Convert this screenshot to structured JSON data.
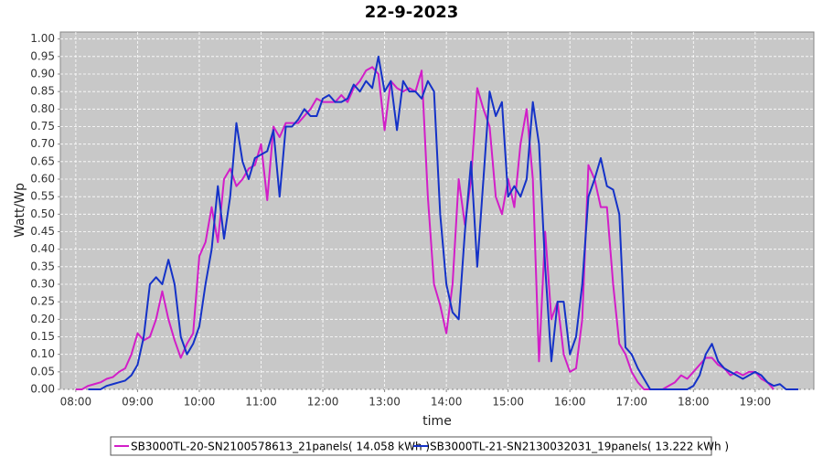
{
  "chart_data": {
    "type": "line",
    "title": "22-9-2023",
    "x_label": "time",
    "y_label": "Watt/Wp",
    "x": [
      8.0,
      8.1,
      8.2,
      8.3,
      8.4,
      8.5,
      8.6,
      8.7,
      8.8,
      8.9,
      9.0,
      9.1,
      9.2,
      9.3,
      9.4,
      9.5,
      9.6,
      9.7,
      9.8,
      9.9,
      10.0,
      10.1,
      10.2,
      10.3,
      10.4,
      10.5,
      10.6,
      10.7,
      10.8,
      10.9,
      11.0,
      11.1,
      11.2,
      11.3,
      11.4,
      11.5,
      11.6,
      11.7,
      11.8,
      11.9,
      12.0,
      12.1,
      12.2,
      12.3,
      12.4,
      12.5,
      12.6,
      12.7,
      12.8,
      12.9,
      13.0,
      13.1,
      13.2,
      13.3,
      13.4,
      13.5,
      13.6,
      13.7,
      13.8,
      13.9,
      14.0,
      14.1,
      14.2,
      14.3,
      14.4,
      14.5,
      14.6,
      14.7,
      14.8,
      14.9,
      15.0,
      15.1,
      15.2,
      15.3,
      15.4,
      15.5,
      15.6,
      15.7,
      15.8,
      15.9,
      16.0,
      16.1,
      16.2,
      16.3,
      16.4,
      16.5,
      16.6,
      16.7,
      16.8,
      16.9,
      17.0,
      17.1,
      17.2,
      17.3,
      17.4,
      17.5,
      17.6,
      17.7,
      17.8,
      17.9,
      18.0,
      18.1,
      18.2,
      18.3,
      18.4,
      18.5,
      18.6,
      18.7,
      18.8,
      18.9,
      19.0,
      19.1,
      19.2,
      19.3,
      19.4,
      19.5,
      19.6,
      19.7
    ],
    "series": [
      {
        "name": "SB3000TL-20-SN2100578613_21panels( 14.058 kWh )",
        "color": "#d21ec8",
        "values": [
          0,
          0,
          0.01,
          0.015,
          0.02,
          0.03,
          0.035,
          0.05,
          0.06,
          0.1,
          0.16,
          0.14,
          0.15,
          0.2,
          0.28,
          0.2,
          0.14,
          0.09,
          0.13,
          0.16,
          0.38,
          0.42,
          0.52,
          0.42,
          0.6,
          0.63,
          0.58,
          0.6,
          0.63,
          0.64,
          0.7,
          0.54,
          0.75,
          0.72,
          0.76,
          0.76,
          0.76,
          0.78,
          0.8,
          0.83,
          0.82,
          0.82,
          0.82,
          0.84,
          0.82,
          0.86,
          0.88,
          0.91,
          0.92,
          0.9,
          0.74,
          0.88,
          0.86,
          0.85,
          0.86,
          0.85,
          0.91,
          0.55,
          0.3,
          0.24,
          0.16,
          0.3,
          0.6,
          0.47,
          0.6,
          0.86,
          0.8,
          0.75,
          0.55,
          0.5,
          0.6,
          0.52,
          0.7,
          0.8,
          0.6,
          0.08,
          0.45,
          0.2,
          0.25,
          0.1,
          0.05,
          0.06,
          0.2,
          0.64,
          0.6,
          0.52,
          0.52,
          0.3,
          0.13,
          0.1,
          0.05,
          0.02,
          0,
          0,
          0,
          0,
          0.01,
          0.02,
          0.04,
          0.03,
          0.05,
          0.07,
          0.09,
          0.09,
          0.07,
          0.06,
          0.04,
          0.05,
          0.04,
          0.05,
          0.05,
          0.03,
          0.02,
          0,
          null,
          null,
          null,
          null
        ]
      },
      {
        "name": "SB3000TL-21-SN2130032031_19panels( 13.222 kWh )",
        "color": "#1432c8",
        "values": [
          null,
          null,
          0,
          0,
          0,
          0.01,
          0.015,
          0.02,
          0.025,
          0.04,
          0.07,
          0.15,
          0.3,
          0.32,
          0.3,
          0.37,
          0.3,
          0.15,
          0.1,
          0.13,
          0.18,
          0.3,
          0.4,
          0.58,
          0.43,
          0.55,
          0.76,
          0.65,
          0.6,
          0.66,
          0.67,
          0.68,
          0.74,
          0.55,
          0.75,
          0.75,
          0.77,
          0.8,
          0.78,
          0.78,
          0.83,
          0.84,
          0.82,
          0.82,
          0.83,
          0.87,
          0.85,
          0.88,
          0.86,
          0.95,
          0.85,
          0.88,
          0.74,
          0.88,
          0.85,
          0.85,
          0.83,
          0.88,
          0.85,
          0.5,
          0.3,
          0.22,
          0.2,
          0.45,
          0.65,
          0.35,
          0.6,
          0.85,
          0.78,
          0.82,
          0.55,
          0.58,
          0.55,
          0.6,
          0.82,
          0.7,
          0.35,
          0.08,
          0.25,
          0.25,
          0.1,
          0.15,
          0.3,
          0.55,
          0.6,
          0.66,
          0.58,
          0.57,
          0.5,
          0.12,
          0.1,
          0.06,
          0.03,
          0,
          0,
          0,
          0,
          0,
          0,
          0,
          0.01,
          0.04,
          0.1,
          0.13,
          0.08,
          0.06,
          0.05,
          0.04,
          0.03,
          0.04,
          0.05,
          0.04,
          0.02,
          0.01,
          0.015,
          0,
          0,
          0
        ]
      }
    ],
    "xlim": [
      7.75,
      19.95
    ],
    "xticks": [
      {
        "value": 8,
        "label": "08:00"
      },
      {
        "value": 9,
        "label": "09:00"
      },
      {
        "value": 10,
        "label": "10:00"
      },
      {
        "value": 11,
        "label": "11:00"
      },
      {
        "value": 12,
        "label": "12:00"
      },
      {
        "value": 13,
        "label": "13:00"
      },
      {
        "value": 14,
        "label": "14:00"
      },
      {
        "value": 15,
        "label": "15:00"
      },
      {
        "value": 16,
        "label": "16:00"
      },
      {
        "value": 17,
        "label": "17:00"
      },
      {
        "value": 18,
        "label": "18:00"
      },
      {
        "value": 19,
        "label": "19:00"
      }
    ],
    "ylim": [
      0,
      1.02
    ],
    "yticks": [
      {
        "value": 0,
        "label": "0.00"
      },
      {
        "value": 0.05,
        "label": "0.05"
      },
      {
        "value": 0.1,
        "label": "0.10"
      },
      {
        "value": 0.15,
        "label": "0.15"
      },
      {
        "value": 0.2,
        "label": "0.20"
      },
      {
        "value": 0.25,
        "label": "0.25"
      },
      {
        "value": 0.3,
        "label": "0.30"
      },
      {
        "value": 0.35,
        "label": "0.35"
      },
      {
        "value": 0.4,
        "label": "0.40"
      },
      {
        "value": 0.45,
        "label": "0.45"
      },
      {
        "value": 0.5,
        "label": "0.50"
      },
      {
        "value": 0.55,
        "label": "0.55"
      },
      {
        "value": 0.6,
        "label": "0.60"
      },
      {
        "value": 0.65,
        "label": "0.65"
      },
      {
        "value": 0.7,
        "label": "0.70"
      },
      {
        "value": 0.75,
        "label": "0.75"
      },
      {
        "value": 0.8,
        "label": "0.80"
      },
      {
        "value": 0.85,
        "label": "0.85"
      },
      {
        "value": 0.9,
        "label": "0.90"
      },
      {
        "value": 0.95,
        "label": "0.95"
      },
      {
        "value": 1.0,
        "label": "1.00"
      }
    ],
    "grid": true,
    "legend": "bottom"
  }
}
